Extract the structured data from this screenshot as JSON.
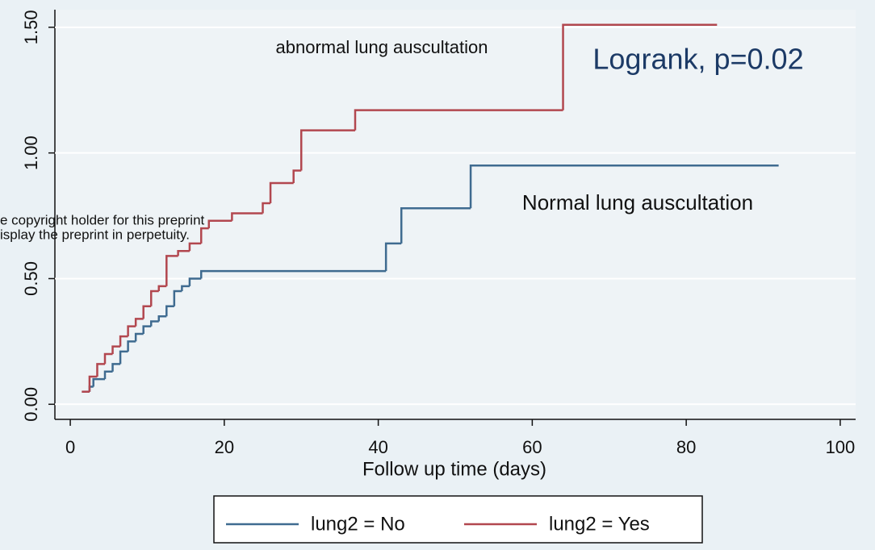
{
  "chart_data": {
    "type": "step",
    "xlabel": "Follow up time (days)",
    "xlim": [
      -2,
      102
    ],
    "xticks": [
      0,
      20,
      40,
      60,
      80,
      100
    ],
    "ylim": [
      -0.06,
      1.57
    ],
    "yticks": [
      {
        "value": 0,
        "label": "0.00"
      },
      {
        "value": 0.5,
        "label": "0.50"
      },
      {
        "value": 1,
        "label": "1.00"
      },
      {
        "value": 1.5,
        "label": "1.50"
      }
    ],
    "grid": true,
    "annotations": {
      "abnormal": "abnormal lung auscultation",
      "normal": "Normal lung auscultation",
      "logrank": "Logrank, p=0.02",
      "overlay": [
        "e copyright holder for this preprint",
        "isplay the preprint in perpetuity."
      ]
    },
    "series": [
      {
        "name": "lung2 = No",
        "color": "#3f6b90",
        "x": [
          1.5,
          2.5,
          3,
          4.5,
          5.5,
          6.5,
          7.5,
          8.5,
          9.5,
          10.5,
          11.5,
          12.5,
          13.5,
          14.5,
          15.5,
          17,
          41,
          43,
          52,
          92
        ],
        "values": [
          0.05,
          0.07,
          0.1,
          0.13,
          0.16,
          0.21,
          0.25,
          0.28,
          0.31,
          0.33,
          0.35,
          0.39,
          0.45,
          0.47,
          0.5,
          0.53,
          0.64,
          0.78,
          0.95,
          0.95
        ]
      },
      {
        "name": "lung2 = Yes",
        "color": "#b2474f",
        "x": [
          1.5,
          2.5,
          3.5,
          4.5,
          5.5,
          6.5,
          7.5,
          8.5,
          9.5,
          10.5,
          11.5,
          12.5,
          14,
          15.5,
          17,
          18,
          21,
          25,
          26,
          29,
          30,
          37,
          64,
          84
        ],
        "values": [
          0.05,
          0.11,
          0.16,
          0.2,
          0.23,
          0.27,
          0.31,
          0.34,
          0.39,
          0.45,
          0.47,
          0.59,
          0.61,
          0.64,
          0.7,
          0.73,
          0.76,
          0.8,
          0.88,
          0.93,
          1.09,
          1.17,
          1.51,
          1.51
        ]
      }
    ]
  }
}
